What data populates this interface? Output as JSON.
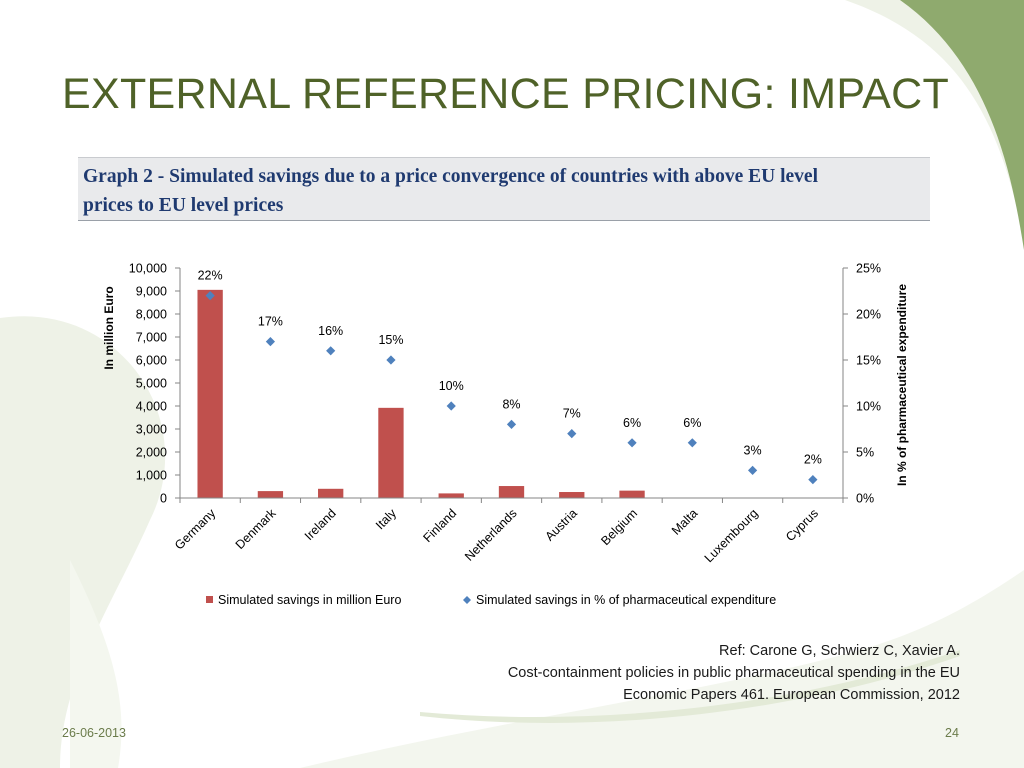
{
  "slide": {
    "title": "EXTERNAL REFERENCE PRICING: IMPACT",
    "graph_caption_line1": "Graph 2 - Simulated savings due to a price convergence of countries with above EU level",
    "graph_caption_line2": "prices to EU level prices",
    "reference": {
      "line1": "Ref: Carone G, Schwierz C, Xavier A.",
      "line2": "Cost-containment policies in public pharmaceutical spending in the EU",
      "line3": "Economic Papers 461. European Commission, 2012"
    },
    "footer": {
      "date": "26-06-2013",
      "page_number": "24"
    },
    "colors": {
      "title": "#4f6228",
      "accent_green": "#8faa6e",
      "bar": "#c0504d",
      "marker": "#4f81bd",
      "caption_text": "#1f3a70"
    }
  },
  "chart_data": {
    "type": "bar",
    "categories": [
      "Germany",
      "Denmark",
      "Ireland",
      "Italy",
      "Finland",
      "Netherlands",
      "Austria",
      "Belgium",
      "Malta",
      "Luxembourg",
      "Cyprus"
    ],
    "series": [
      {
        "name": "Simulated savings in million Euro",
        "type": "bar",
        "axis": "left",
        "values": [
          9050,
          300,
          400,
          3920,
          200,
          520,
          260,
          320,
          20,
          10,
          10
        ]
      },
      {
        "name": "Simulated savings in % of pharmaceutical expenditure",
        "type": "scatter",
        "axis": "right",
        "values": [
          22,
          17,
          16,
          15,
          10,
          8,
          7,
          6,
          6,
          3,
          2
        ],
        "labels": [
          "22%",
          "17%",
          "16%",
          "15%",
          "10%",
          "8%",
          "7%",
          "6%",
          "6%",
          "3%",
          "2%"
        ]
      }
    ],
    "ylabel": "In million Euro",
    "ylabel_right": "In % of pharmaceutical expenditure",
    "ylim": [
      0,
      10000
    ],
    "ylim_right": [
      0,
      25
    ],
    "yticks": [
      "0",
      "1,000",
      "2,000",
      "3,000",
      "4,000",
      "5,000",
      "6,000",
      "7,000",
      "8,000",
      "9,000",
      "10,000"
    ],
    "yticks_right": [
      "0%",
      "5%",
      "10%",
      "15%",
      "20%",
      "25%"
    ],
    "grid": false,
    "legend": "bottom"
  }
}
